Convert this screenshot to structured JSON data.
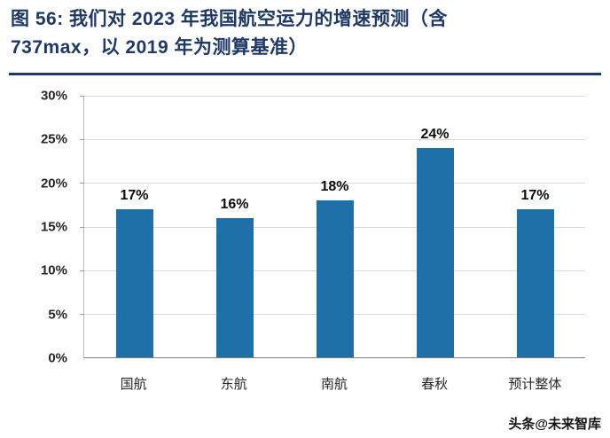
{
  "figure": {
    "title_line1": "图 56:  我们对 2023 年我国航空运力的增速预测（含",
    "title_line2": "737max，以 2019 年为测算基准）"
  },
  "watermark": {
    "text": "头条@未来智库"
  },
  "colors": {
    "bar": "#1F6FA8",
    "title": "#1F3864",
    "grid": "#D9D9D9",
    "axis": "#808080",
    "text": "#262626"
  },
  "chart_data": {
    "type": "bar",
    "categories": [
      "国航",
      "东航",
      "南航",
      "春秋",
      "预计整体"
    ],
    "values": [
      17,
      16,
      18,
      24,
      17
    ],
    "data_labels": [
      "17%",
      "16%",
      "18%",
      "24%",
      "17%"
    ],
    "title": "我们对 2023 年我国航空运力的增速预测（含 737max，以 2019 年为测算基准）",
    "xlabel": "",
    "ylabel": "",
    "ylim": [
      0,
      30
    ],
    "ytick_step": 5,
    "ytick_labels": [
      "0%",
      "5%",
      "10%",
      "15%",
      "20%",
      "25%",
      "30%"
    ],
    "grid": true,
    "legend_position": "none"
  }
}
